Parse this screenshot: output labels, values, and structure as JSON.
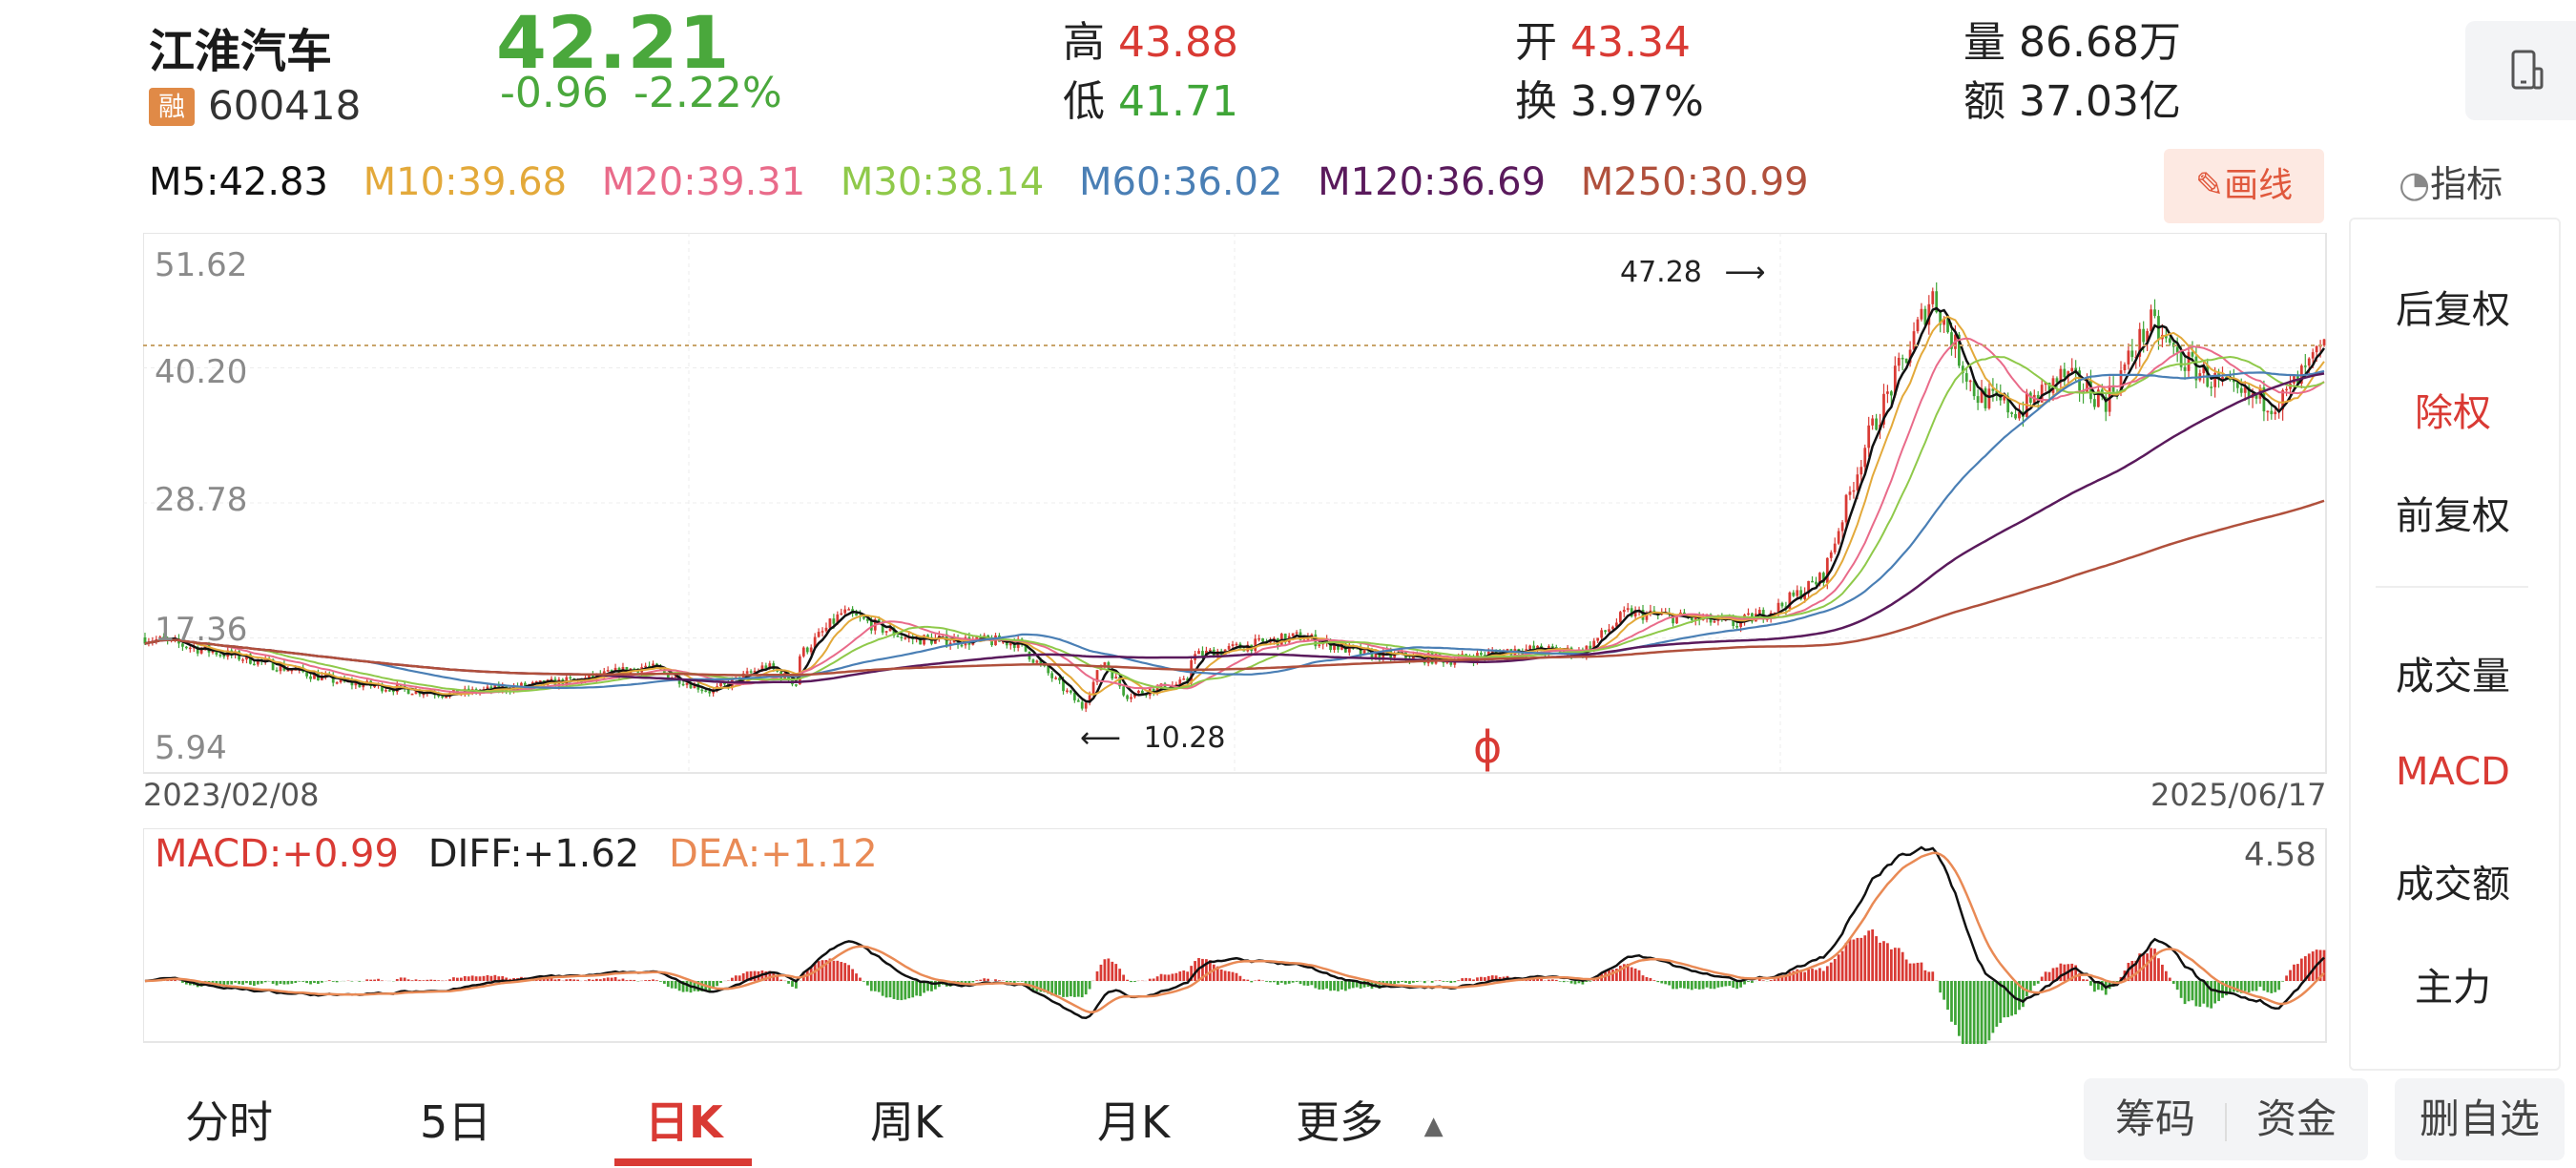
{
  "stock": {
    "name": "江淮汽车",
    "rong": "融",
    "code": "600418",
    "price": "42.21",
    "change": "-0.96",
    "change_pct": "-2.22%"
  },
  "stats": {
    "high_label": "高",
    "high": "43.88",
    "low_label": "低",
    "low": "41.71",
    "open_label": "开",
    "open": "43.34",
    "turnover_label": "换",
    "turnover": "3.97%",
    "volume_label": "量",
    "volume": "86.68万",
    "amount_label": "额",
    "amount": "37.03亿"
  },
  "ma": {
    "m5": "M5:42.83",
    "m10": "M10:39.68",
    "m20": "M20:39.31",
    "m30": "M30:38.14",
    "m60": "M60:36.02",
    "m120": "M120:36.69",
    "m250": "M250:30.99"
  },
  "colors": {
    "m5": "#111111",
    "m10": "#e3a93a",
    "m20": "#e96b8a",
    "m30": "#8fc94a",
    "m60": "#4a7fb5",
    "m120": "#5a1a5c",
    "m250": "#b0503c",
    "up": "#d93a34",
    "down": "#3fa537"
  },
  "toolbar": {
    "draw": "画线",
    "indicator": "指标"
  },
  "chart": {
    "y_labels": [
      "51.62",
      "40.20",
      "28.78",
      "17.36",
      "5.94"
    ],
    "start_date": "2023/02/08",
    "end_date": "2025/06/17",
    "max_mark": "47.28",
    "min_mark": "10.28",
    "watermark": "ɸ"
  },
  "chart_data": {
    "type": "candlestick",
    "y_range": [
      5.94,
      51.62
    ],
    "x_range": [
      "2023/02/08",
      "2025/06/17"
    ],
    "max_price": 47.28,
    "min_price": 10.28,
    "last_close": 42.21,
    "macd": {
      "macd": "+0.99",
      "diff": "+1.62",
      "dea": "+1.12",
      "scale_max": "4.58"
    }
  },
  "macd_labels": {
    "macd": "MACD:+0.99",
    "diff": "DIFF:+1.62",
    "dea": "DEA:+1.12",
    "max": "4.58"
  },
  "side_menu": {
    "houfuquan": "后复权",
    "chuquan": "除权",
    "qianfuquan": "前复权",
    "volume": "成交量",
    "macd": "MACD",
    "amount": "成交额",
    "zhuli": "主力"
  },
  "tabs": [
    "分时",
    "5日",
    "日K",
    "周K",
    "月K",
    "更多"
  ],
  "bottom_buttons": {
    "chips": "筹码",
    "funds": "资金",
    "remove": "删自选"
  }
}
